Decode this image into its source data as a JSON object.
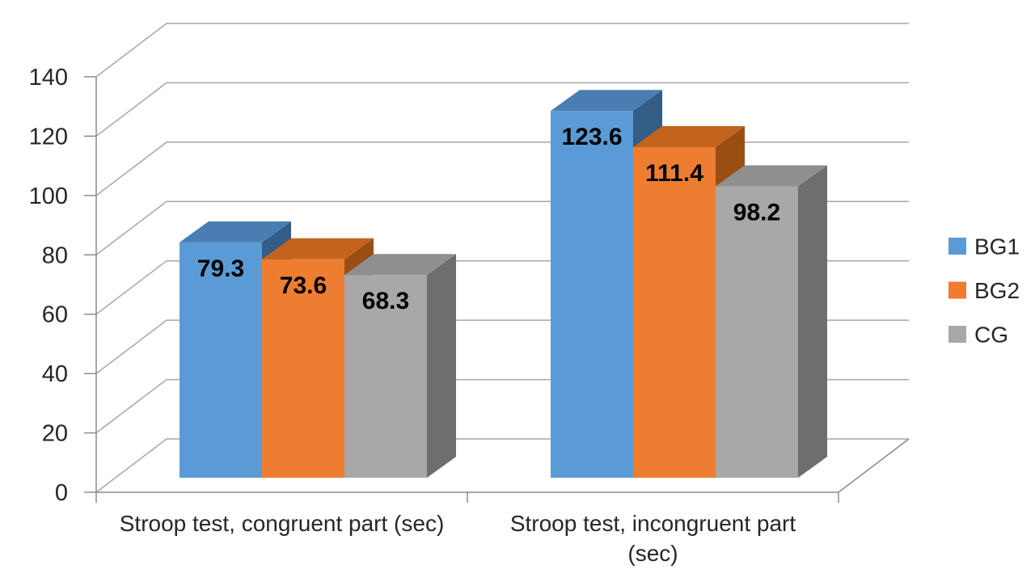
{
  "chart_data": {
    "type": "bar",
    "variant": "3d-clustered-column",
    "title": "",
    "xlabel": "",
    "ylabel": "",
    "categories": [
      {
        "label": "Stroop test, congruent part (sec)",
        "lines": [
          "Stroop test, congruent part (sec)"
        ]
      },
      {
        "label": "Stroop test, incongruent part (sec)",
        "lines": [
          "Stroop test, incongruent part",
          "(sec)"
        ]
      }
    ],
    "series": [
      {
        "name": "BG1",
        "values": [
          79.3,
          123.6
        ],
        "labels": [
          "79.3",
          "123.6"
        ],
        "color": "#5B9BD5",
        "top_color": "#4A7EB2",
        "side_color": "#335C87"
      },
      {
        "name": "BG2",
        "values": [
          73.6,
          111.4
        ],
        "labels": [
          "73.6",
          "111.4"
        ],
        "color": "#ED7D31",
        "top_color": "#C4631D",
        "side_color": "#9A4E14"
      },
      {
        "name": "CG",
        "values": [
          68.3,
          98.2
        ],
        "labels": [
          "68.3",
          "98.2"
        ],
        "color": "#A8A8A8",
        "top_color": "#8F8F8F",
        "side_color": "#6E6E6E"
      }
    ],
    "ylim": [
      0,
      140
    ],
    "yticks": [
      0,
      20,
      40,
      60,
      80,
      100,
      120,
      140
    ],
    "grid": true,
    "legend_position": "right",
    "legend": [
      "BG1",
      "BG2",
      "CG"
    ]
  },
  "style_colors": {
    "background": "#FFFFFF",
    "gridline": "#A6A6A6",
    "axis_line": "#8C8C8C",
    "tick_text": "#262626",
    "category_text": "#262626",
    "legend_text": "#262626",
    "data_label_text": "#000000"
  }
}
